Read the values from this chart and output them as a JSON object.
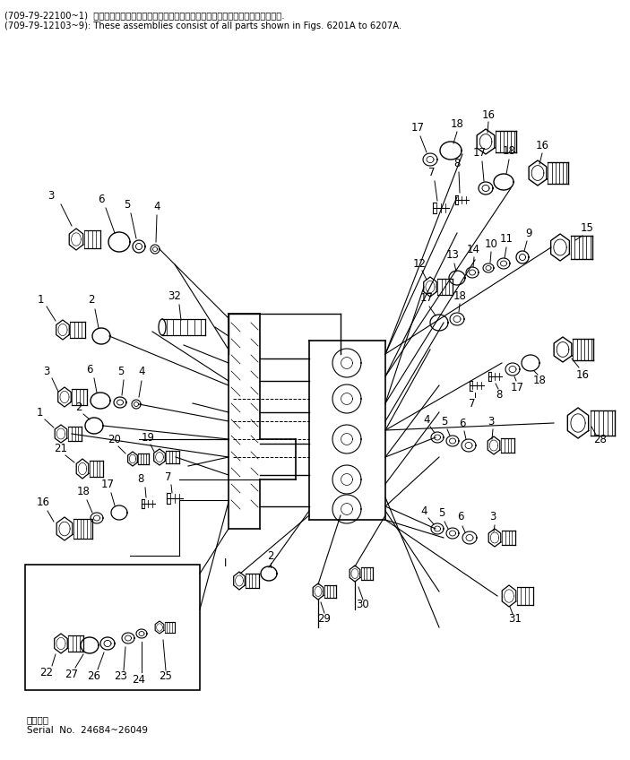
{
  "bg_color": "#ffffff",
  "line_color": "#000000",
  "header_line1": "(709-79-22100~1)  これらのアセンブリの構成部品は第６２０１圖から第６２０７圖まで含みます.",
  "header_line2": "(709-79-12103~9): These assemblies consist of all parts shown in Figs. 6201A to 6207A.",
  "footer_line1": "通用号機",
  "footer_line2": "Serial  No.  24684~26049",
  "figsize": [
    7.03,
    8.48
  ],
  "dpi": 100
}
